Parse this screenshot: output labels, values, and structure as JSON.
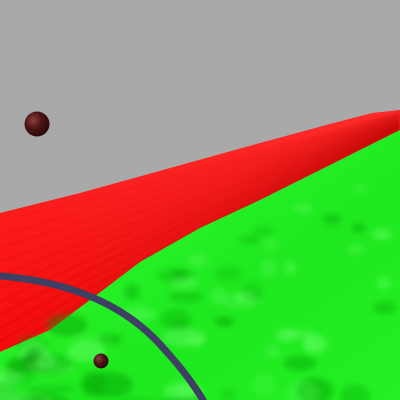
{
  "scene": {
    "kind": "3d-render",
    "colors": {
      "sky": "#a9a9a9",
      "red_terrain": "#ff1a1a",
      "red_terrain_shadow": "#b80000",
      "green_terrain": "#1fff1f",
      "green_terrain_shadow": "#0a9a0a",
      "orb": "#4a1414",
      "orb_highlight": "#8a4040",
      "arc": "#3d3f63"
    },
    "objects": [
      {
        "name": "sky-backdrop",
        "type": "background"
      },
      {
        "name": "red-terrain-strip",
        "type": "terrain"
      },
      {
        "name": "green-terrain-field",
        "type": "terrain"
      },
      {
        "name": "dark-orb-upper",
        "type": "sphere"
      },
      {
        "name": "dark-orb-lower",
        "type": "sphere"
      },
      {
        "name": "dark-blue-arc",
        "type": "curve"
      }
    ]
  }
}
